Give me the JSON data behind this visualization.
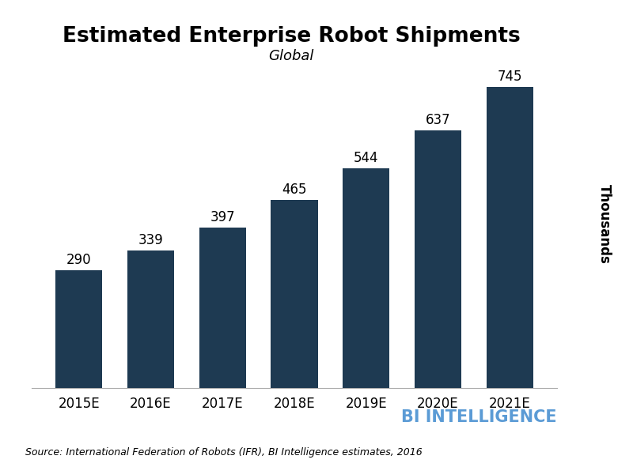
{
  "title": "Estimated Enterprise Robot Shipments",
  "subtitle": "Global",
  "categories": [
    "2015E",
    "2016E",
    "2017E",
    "2018E",
    "2019E",
    "2020E",
    "2021E"
  ],
  "values": [
    290,
    339,
    397,
    465,
    544,
    637,
    745
  ],
  "bar_color": "#1e3a52",
  "ylabel": "Thousands",
  "ylim": [
    0,
    810
  ],
  "background_color": "#ffffff",
  "title_fontsize": 19,
  "subtitle_fontsize": 13,
  "label_fontsize": 12,
  "tick_fontsize": 12,
  "ylabel_fontsize": 12,
  "source_text": "Source: International Federation of Robots (IFR), BI Intelligence estimates, 2016",
  "bi_text": "BI INTELLIGENCE",
  "bi_color": "#5b9bd5",
  "source_fontsize": 9,
  "bar_width": 0.65
}
